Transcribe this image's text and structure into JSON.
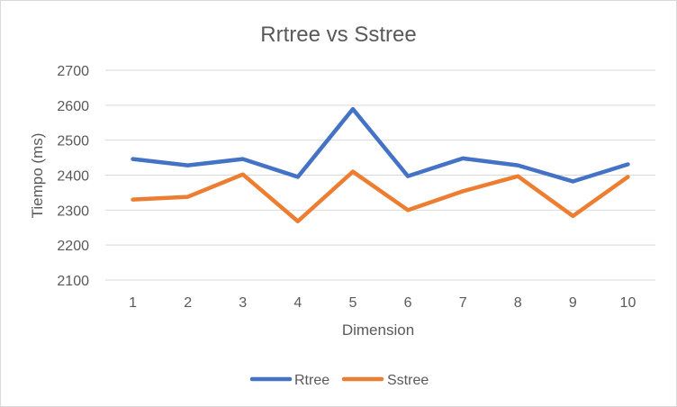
{
  "chart_data": {
    "type": "line",
    "title": "Rrtree vs Sstree",
    "xlabel": "Dimension",
    "ylabel": "Tiempo (ms)",
    "categories": [
      "1",
      "2",
      "3",
      "4",
      "5",
      "6",
      "7",
      "8",
      "9",
      "10"
    ],
    "y_ticks": [
      "2100",
      "2200",
      "2300",
      "2400",
      "2500",
      "2600",
      "2700"
    ],
    "ylim": [
      2100,
      2700
    ],
    "grid": true,
    "legend_position": "bottom",
    "series": [
      {
        "name": "Rtree",
        "color": "#4472c4",
        "values": [
          2446,
          2428,
          2446,
          2395,
          2589,
          2397,
          2448,
          2428,
          2382,
          2431
        ]
      },
      {
        "name": "Sstree",
        "color": "#ed7d31",
        "values": [
          2330,
          2338,
          2402,
          2268,
          2410,
          2300,
          2354,
          2397,
          2283,
          2395
        ]
      }
    ]
  }
}
